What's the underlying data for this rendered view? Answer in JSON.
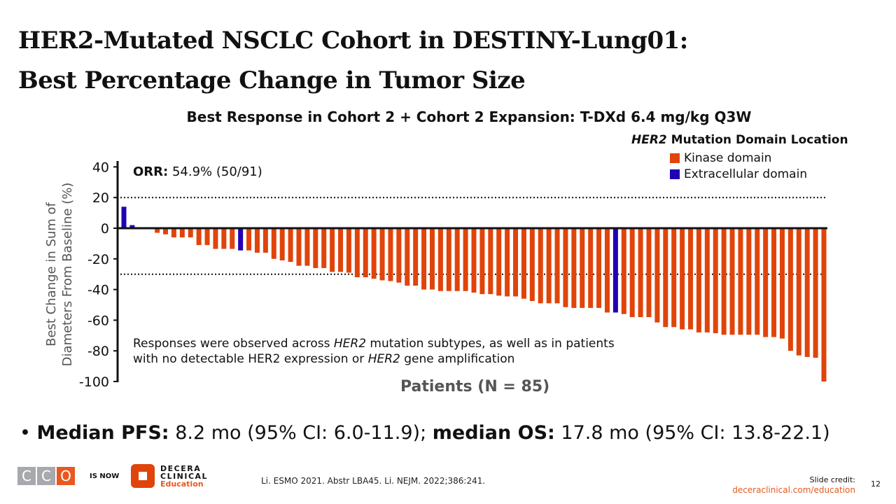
{
  "title": {
    "line1": "HER2-Mutated NSCLC Cohort in DESTINY-Lung01:",
    "line2": "Best Percentage Change in Tumor Size"
  },
  "colors": {
    "kinase": "#e0440a",
    "extracellular": "#2200b4",
    "accent": "#e8581f"
  },
  "chart_data": {
    "type": "bar",
    "title": "Best Response in Cohort 2 + Cohort 2 Expansion: T-DXd 6.4 mg/kg Q3W",
    "xlabel": "Patients (N = 85)",
    "ylabel_line1": "Best Change in Sum of",
    "ylabel_line2": "Diameters From Baseline (%)",
    "ylim": [
      -100,
      40
    ],
    "yticks": [
      "40",
      "20",
      "0",
      "-20",
      "-40",
      "-60",
      "-80",
      "-100"
    ],
    "ytick_values": [
      40,
      20,
      0,
      -20,
      -40,
      -60,
      -80,
      -100
    ],
    "reference_lines": [
      20,
      -30
    ],
    "legend_title_italic": "HER2",
    "legend_title_rest": " Mutation Domain Location",
    "legend": [
      {
        "name": "Kinase domain",
        "key": "K"
      },
      {
        "name": "Extracellular domain",
        "key": "E"
      }
    ],
    "values": [
      14,
      2,
      0,
      0,
      -3,
      -4,
      -6,
      -6,
      -6,
      -11,
      -11,
      -13.5,
      -13.5,
      -13.5,
      -14.5,
      -14.5,
      -16,
      -16,
      -20,
      -21,
      -22,
      -24.5,
      -24.5,
      -26,
      -26,
      -28.5,
      -28.5,
      -29,
      -32,
      -32,
      -33,
      -34,
      -34.5,
      -35.5,
      -37.5,
      -37.5,
      -40,
      -40,
      -41,
      -41,
      -41,
      -41,
      -42,
      -43,
      -43,
      -44,
      -44.5,
      -44.5,
      -46,
      -47.5,
      -49,
      -49,
      -49,
      -51.5,
      -52,
      -52,
      -52,
      -52,
      -55,
      -55,
      -56,
      -58,
      -58,
      -58,
      -61.5,
      -64.5,
      -64.5,
      -66,
      -66,
      -68,
      -68,
      -68.5,
      -69.5,
      -69.5,
      -69.5,
      -69.5,
      -69.5,
      -71,
      -71,
      -72,
      -80,
      -83,
      -84,
      -84.5,
      -100
    ],
    "domain": [
      "E",
      "E",
      "K",
      "K",
      "K",
      "K",
      "K",
      "K",
      "K",
      "K",
      "K",
      "K",
      "K",
      "K",
      "E",
      "K",
      "K",
      "K",
      "K",
      "K",
      "K",
      "K",
      "K",
      "K",
      "K",
      "K",
      "K",
      "K",
      "K",
      "K",
      "K",
      "K",
      "K",
      "K",
      "K",
      "K",
      "K",
      "K",
      "K",
      "K",
      "K",
      "K",
      "K",
      "K",
      "K",
      "K",
      "K",
      "K",
      "K",
      "K",
      "K",
      "K",
      "K",
      "K",
      "K",
      "K",
      "K",
      "K",
      "K",
      "E",
      "K",
      "K",
      "K",
      "K",
      "K",
      "K",
      "K",
      "K",
      "K",
      "K",
      "K",
      "K",
      "K",
      "K",
      "K",
      "K",
      "K",
      "K",
      "K",
      "K",
      "K",
      "K",
      "K",
      "K",
      "K"
    ]
  },
  "orr": {
    "label": "ORR:",
    "value": " 54.9% (50/91)"
  },
  "note": {
    "p1": "Responses were observed across ",
    "i1": "HER2",
    "p2": " mutation subtypes, as well as in patients",
    "p3": "with no detectable HER2 expression or ",
    "i2": "HER2",
    "p4": " gene amplification"
  },
  "bullet": {
    "b1": "Median PFS:",
    "t1": " 8.2 mo (95% CI: 6.0-11.9); ",
    "b2": "median OS:",
    "t2": " 17.8 mo (95% CI: 13.8-22.1)"
  },
  "footer": {
    "cco_letters": [
      "C",
      "C",
      "O"
    ],
    "is_now": "IS NOW",
    "decera": [
      "DECERA",
      "CLINICAL",
      "Education"
    ],
    "citation": "Li. ESMO 2021. Abstr LBA45. Li. NEJM. 2022;386:241.",
    "credit_label": "Slide credit:",
    "credit_url": "deceraclinical.com/education",
    "page": "12"
  }
}
